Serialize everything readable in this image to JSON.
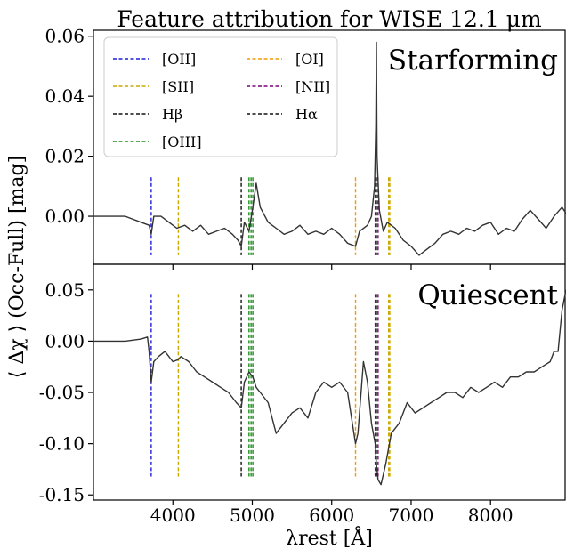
{
  "chart_data": {
    "title": "Feature attribution for WISE 12.1 μm",
    "xlabel": "λrest [Å]",
    "ylabel": "⟨ Δχ ⟩ (Occ-Full) [mag]",
    "xlim": [
      3000,
      8950
    ],
    "x_ticks": [
      "4000",
      "5000",
      "6000",
      "7000",
      "8000"
    ],
    "legend_position": "top-left",
    "legend": [
      {
        "label": "[OII]",
        "color": "#1f1fd6"
      },
      {
        "label": "[SII]",
        "color": "#c9a800"
      },
      {
        "label": "Hβ",
        "color": "#111111"
      },
      {
        "label": "[OIII]",
        "color": "#1e8c1e"
      },
      {
        "label": "[OI]",
        "color": "#f29a00"
      },
      {
        "label": "[NII]",
        "color": "#7a007a"
      },
      {
        "label": "Hα",
        "color": "#111111"
      }
    ],
    "emission_lines": [
      {
        "name": "[OII]",
        "wavelengths": [
          3727
        ],
        "color": "#1f1fd6"
      },
      {
        "name": "[SII]",
        "wavelengths": [
          4069
        ],
        "color": "#c9a800"
      },
      {
        "name": "Hβ",
        "wavelengths": [
          4861
        ],
        "color": "#111111"
      },
      {
        "name": "[OIII]",
        "wavelengths": [
          4959,
          4985,
          5007
        ],
        "color": "#1e8c1e"
      },
      {
        "name": "[OI]",
        "wavelengths": [
          6300
        ],
        "color": "#f29a00"
      },
      {
        "name": "[NII]",
        "wavelengths": [
          6548,
          6584
        ],
        "color": "#7a007a"
      },
      {
        "name": "Hα",
        "wavelengths": [
          6563
        ],
        "color": "#111111"
      },
      {
        "name": "[SII]",
        "wavelengths": [
          6717,
          6731
        ],
        "color": "#c9a800"
      }
    ],
    "panels": [
      {
        "name": "Starforming",
        "type": "line",
        "ylim": [
          -0.016,
          0.062
        ],
        "y_ticks": [
          "0.06",
          "0.04",
          "0.02",
          "0.00"
        ],
        "y_tick_values": [
          0.06,
          0.04,
          0.02,
          0.0
        ],
        "line_span": [
          -0.013,
          0.013
        ],
        "series": {
          "color": "#333333",
          "x": [
            3000,
            3200,
            3400,
            3600,
            3700,
            3727,
            3760,
            3850,
            3950,
            4050,
            4150,
            4250,
            4350,
            4450,
            4550,
            4650,
            4750,
            4820,
            4861,
            4900,
            4959,
            5007,
            5050,
            5100,
            5200,
            5300,
            5400,
            5500,
            5600,
            5700,
            5800,
            5900,
            6000,
            6100,
            6200,
            6300,
            6350,
            6450,
            6500,
            6540,
            6555,
            6563,
            6571,
            6584,
            6600,
            6650,
            6700,
            6800,
            6900,
            7000,
            7100,
            7200,
            7300,
            7400,
            7500,
            7600,
            7700,
            7800,
            7900,
            8000,
            8100,
            8200,
            8300,
            8400,
            8500,
            8600,
            8700,
            8800,
            8900,
            8950
          ],
          "y": [
            0.0,
            0.0,
            0.0,
            -0.002,
            -0.003,
            -0.006,
            0.0,
            0.0,
            -0.002,
            -0.004,
            -0.003,
            -0.005,
            -0.003,
            -0.006,
            -0.005,
            -0.004,
            -0.006,
            -0.008,
            -0.01,
            -0.002,
            -0.005,
            0.003,
            0.011,
            0.003,
            -0.002,
            -0.004,
            -0.006,
            -0.005,
            -0.003,
            -0.006,
            -0.005,
            -0.006,
            -0.004,
            -0.006,
            -0.009,
            -0.01,
            -0.005,
            -0.003,
            0.0,
            0.01,
            0.03,
            0.058,
            0.02,
            0.012,
            0.002,
            -0.005,
            -0.002,
            -0.004,
            -0.008,
            -0.01,
            -0.013,
            -0.011,
            -0.009,
            -0.006,
            -0.005,
            -0.006,
            -0.004,
            -0.005,
            -0.003,
            -0.002,
            -0.006,
            -0.004,
            -0.005,
            -0.001,
            0.002,
            -0.001,
            -0.004,
            0.0,
            0.003,
            0.001
          ]
        }
      },
      {
        "name": "Quiescent",
        "type": "line",
        "ylim": [
          -0.155,
          0.075
        ],
        "y_ticks": [
          "0.05",
          "0.00",
          "-0.05",
          "-0.10",
          "-0.15"
        ],
        "y_tick_values": [
          0.05,
          0.0,
          -0.05,
          -0.1,
          -0.15
        ],
        "line_span": [
          -0.132,
          0.046
        ],
        "series": {
          "color": "#333333",
          "x": [
            3000,
            3200,
            3400,
            3600,
            3680,
            3700,
            3727,
            3760,
            3820,
            3900,
            4000,
            4069,
            4100,
            4200,
            4300,
            4400,
            4500,
            4600,
            4700,
            4800,
            4861,
            4900,
            4959,
            5007,
            5050,
            5100,
            5200,
            5300,
            5400,
            5500,
            5600,
            5700,
            5800,
            5900,
            6000,
            6100,
            6200,
            6280,
            6300,
            6330,
            6400,
            6450,
            6500,
            6548,
            6563,
            6584,
            6620,
            6680,
            6750,
            6850,
            6950,
            7050,
            7150,
            7250,
            7350,
            7450,
            7550,
            7650,
            7750,
            7850,
            7950,
            8050,
            8150,
            8250,
            8350,
            8450,
            8550,
            8650,
            8750,
            8800,
            8850,
            8900,
            8950
          ],
          "y": [
            0.0,
            0.0,
            0.0,
            0.002,
            0.004,
            -0.01,
            -0.04,
            -0.02,
            -0.015,
            -0.01,
            -0.02,
            -0.018,
            -0.015,
            -0.02,
            -0.03,
            -0.035,
            -0.04,
            -0.045,
            -0.05,
            -0.06,
            -0.065,
            -0.04,
            -0.03,
            -0.035,
            -0.045,
            -0.05,
            -0.06,
            -0.09,
            -0.08,
            -0.07,
            -0.065,
            -0.075,
            -0.05,
            -0.04,
            -0.045,
            -0.04,
            -0.05,
            -0.09,
            -0.1,
            -0.09,
            -0.02,
            -0.04,
            -0.08,
            -0.1,
            -0.12,
            -0.135,
            -0.14,
            -0.12,
            -0.09,
            -0.08,
            -0.06,
            -0.07,
            -0.065,
            -0.06,
            -0.055,
            -0.05,
            -0.05,
            -0.055,
            -0.045,
            -0.05,
            -0.045,
            -0.04,
            -0.045,
            -0.035,
            -0.035,
            -0.03,
            -0.03,
            -0.025,
            -0.02,
            -0.01,
            -0.01,
            0.03,
            0.05
          ]
        }
      }
    ]
  }
}
